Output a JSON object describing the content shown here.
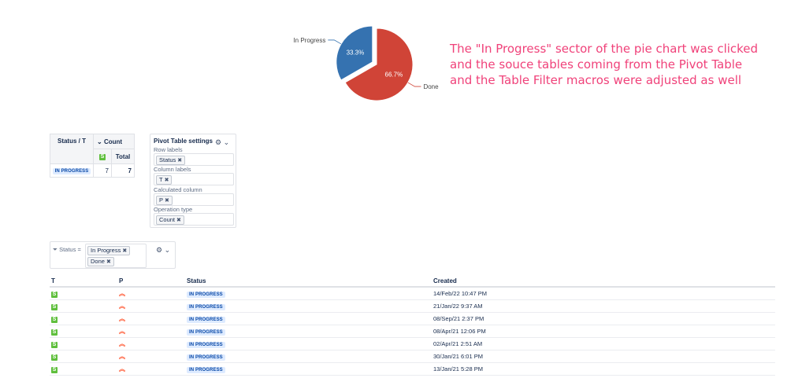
{
  "annotation": "The \"In Progress\" sector of the pie chart was clicked and the souce tables coming from the Pivot Table and the Table Filter macros were adjusted as well",
  "chart_data": {
    "type": "pie",
    "categories": [
      "In Progress",
      "Done"
    ],
    "values": [
      33.3,
      66.7
    ],
    "labels": [
      "33.3%",
      "66.7%"
    ],
    "colors": [
      "#3572b0",
      "#d04437"
    ],
    "exploded": "In Progress"
  },
  "pivot": {
    "corner": "Status / T",
    "count_header": "Count",
    "total_header": "Total",
    "story_icon": "S",
    "rows": [
      {
        "status": "IN PROGRESS",
        "count": "7",
        "total": "7"
      }
    ]
  },
  "settings": {
    "title": "Pivot Table settings",
    "gear_icon": "gear-icon",
    "row_labels_label": "Row labels",
    "row_labels_value": "Status",
    "column_labels_label": "Column labels",
    "column_labels_value": "T",
    "calculated_column_label": "Calculated column",
    "calculated_column_value": "P",
    "operation_type_label": "Operation type",
    "operation_type_value": "Count"
  },
  "filter": {
    "label": "Status",
    "operator": "=",
    "values": [
      "In Progress",
      "Done"
    ]
  },
  "table": {
    "headers": {
      "t": "T",
      "p": "P",
      "status": "Status",
      "created": "Created"
    },
    "rows": [
      {
        "t": "S",
        "status": "IN PROGRESS",
        "created": "14/Feb/22 10:47 PM"
      },
      {
        "t": "S",
        "status": "IN PROGRESS",
        "created": "21/Jan/22 9:37 AM"
      },
      {
        "t": "S",
        "status": "IN PROGRESS",
        "created": "08/Sep/21 2:37 PM"
      },
      {
        "t": "S",
        "status": "IN PROGRESS",
        "created": "08/Apr/21 12:06 PM"
      },
      {
        "t": "S",
        "status": "IN PROGRESS",
        "created": "02/Apr/21 2:51 AM"
      },
      {
        "t": "S",
        "status": "IN PROGRESS",
        "created": "30/Jan/21 6:01 PM"
      },
      {
        "t": "S",
        "status": "IN PROGRESS",
        "created": "13/Jan/21 5:28 PM"
      }
    ]
  }
}
